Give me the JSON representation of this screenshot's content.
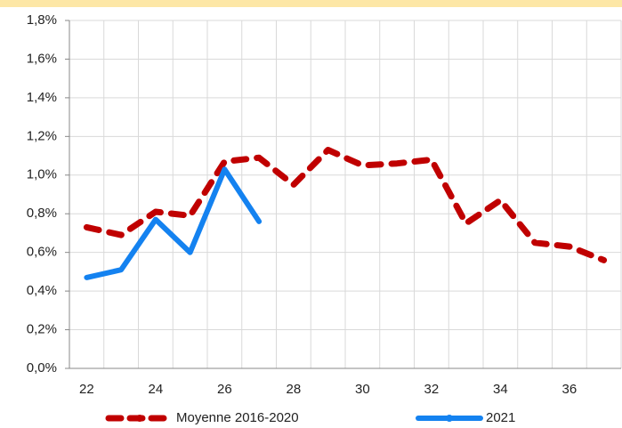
{
  "chart_data": {
    "type": "line",
    "categories": [
      "22",
      null,
      "24",
      null,
      "26",
      null,
      "28",
      null,
      "30",
      null,
      "32",
      null,
      "34",
      null,
      "36",
      null
    ],
    "series": [
      {
        "name": "Moyenne 2016-2020",
        "color": "#c00000",
        "dashed": true,
        "values": [
          0.73,
          0.69,
          0.81,
          0.79,
          1.07,
          1.09,
          0.95,
          1.13,
          1.05,
          1.06,
          1.08,
          0.75,
          0.87,
          0.65,
          0.63,
          0.56
        ]
      },
      {
        "name": "2021",
        "color": "#1482f0",
        "dashed": false,
        "values": [
          0.47,
          0.51,
          0.77,
          0.6,
          1.03,
          0.76,
          null,
          null,
          null,
          null,
          null,
          null,
          null,
          null,
          null,
          null
        ]
      }
    ],
    "ylim": [
      0,
      1.8
    ],
    "yticks": [
      {
        "value": 0,
        "label": "0,0%"
      },
      {
        "value": 0.2,
        "label": "0,2%"
      },
      {
        "value": 0.4,
        "label": "0,4%"
      },
      {
        "value": 0.6,
        "label": "0,6%"
      },
      {
        "value": 0.8,
        "label": "0,8%"
      },
      {
        "value": 1.0,
        "label": "1,0%"
      },
      {
        "value": 1.2,
        "label": "1,2%"
      },
      {
        "value": 1.4,
        "label": "1,4%"
      },
      {
        "value": 1.6,
        "label": "1,6%"
      },
      {
        "value": 1.8,
        "label": "1,8%"
      }
    ],
    "grid": true,
    "legend": "bottom"
  }
}
